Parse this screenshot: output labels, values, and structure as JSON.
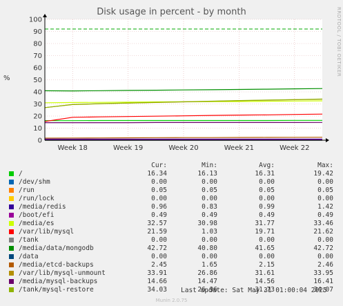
{
  "title": "Disk usage in percent - by month",
  "side_label": "RRDTOOL / TOBI OETIKER",
  "ylabel": "%",
  "header": {
    "cur": "Cur:",
    "min": "Min:",
    "avg": "Avg:",
    "max": "Max:"
  },
  "last_update": "Last update: Sat May 31 01:00:04 2025",
  "footer": "Munin 2.0.75",
  "colors": {
    "background": "#f0f0f0",
    "plot_bg": "#ffffff",
    "grid": "#e0b0b0",
    "warning_line": "#00aa00",
    "axis": "#000000"
  },
  "chart_data": {
    "type": "line",
    "title": "Disk usage in percent - by month",
    "ylabel": "%",
    "ylim": [
      0,
      100
    ],
    "y_ticks": [
      0,
      10,
      20,
      30,
      40,
      50,
      60,
      70,
      80,
      90,
      100
    ],
    "x_ticks": [
      "Week 18",
      "Week 19",
      "Week 20",
      "Week 21",
      "Week 22"
    ],
    "grid": true,
    "warning_level": 92,
    "series": [
      {
        "name": "/",
        "color": "#00cc00",
        "cur": "16.34",
        "min": "16.13",
        "avg": "16.31",
        "max": "19.42",
        "values": [
          16.2,
          16.2,
          16.3,
          16.3,
          16.3,
          16.3,
          16.3,
          16.3,
          16.3,
          16.4,
          16.4
        ]
      },
      {
        "name": "/dev/shm",
        "color": "#0066b3",
        "cur": "0.00",
        "min": "0.00",
        "avg": "0.00",
        "max": "0.00",
        "values": [
          0,
          0,
          0,
          0,
          0,
          0,
          0,
          0,
          0,
          0,
          0
        ]
      },
      {
        "name": "/run",
        "color": "#ff8000",
        "cur": "0.05",
        "min": "0.05",
        "avg": "0.05",
        "max": "0.05",
        "values": [
          0.05,
          0.05,
          0.05,
          0.05,
          0.05,
          0.05,
          0.05,
          0.05,
          0.05,
          0.05,
          0.05
        ]
      },
      {
        "name": "/run/lock",
        "color": "#ffcc00",
        "cur": "0.00",
        "min": "0.00",
        "avg": "0.00",
        "max": "0.00",
        "values": [
          0,
          0,
          0,
          0,
          0,
          0,
          0,
          0,
          0,
          0,
          0
        ]
      },
      {
        "name": "/media/redis",
        "color": "#330099",
        "cur": "0.96",
        "min": "0.83",
        "avg": "0.99",
        "max": "1.42",
        "values": [
          0.9,
          1.0,
          1.0,
          1.0,
          1.0,
          1.0,
          1.0,
          1.0,
          1.0,
          1.0,
          0.96
        ]
      },
      {
        "name": "/boot/efi",
        "color": "#990099",
        "cur": "0.49",
        "min": "0.49",
        "avg": "0.49",
        "max": "0.49",
        "values": [
          0.49,
          0.49,
          0.49,
          0.49,
          0.49,
          0.49,
          0.49,
          0.49,
          0.49,
          0.49,
          0.49
        ]
      },
      {
        "name": "/media/es",
        "color": "#ccff00",
        "cur": "32.57",
        "min": "30.98",
        "avg": "31.77",
        "max": "33.46",
        "values": [
          31.0,
          31.2,
          31.3,
          31.5,
          31.7,
          31.8,
          31.9,
          32.0,
          32.2,
          32.4,
          32.57
        ]
      },
      {
        "name": "/var/lib/mysql",
        "color": "#ff0000",
        "cur": "21.59",
        "min": "1.03",
        "avg": "19.71",
        "max": "21.62",
        "values": [
          15.5,
          19.0,
          19.3,
          19.6,
          19.9,
          20.2,
          20.5,
          20.8,
          21.0,
          21.3,
          21.59
        ]
      },
      {
        "name": "/tank",
        "color": "#808080",
        "cur": "0.00",
        "min": "0.00",
        "avg": "0.00",
        "max": "0.00",
        "values": [
          0,
          0,
          0,
          0,
          0,
          0,
          0,
          0,
          0,
          0,
          0
        ]
      },
      {
        "name": "/media/data/mongodb",
        "color": "#008f00",
        "cur": "42.72",
        "min": "40.80",
        "avg": "41.65",
        "max": "42.72",
        "values": [
          40.9,
          40.8,
          41.0,
          41.2,
          41.4,
          41.6,
          41.8,
          42.0,
          42.2,
          42.5,
          42.72
        ]
      },
      {
        "name": "/data",
        "color": "#00487d",
        "cur": "0.00",
        "min": "0.00",
        "avg": "0.00",
        "max": "0.00",
        "values": [
          0,
          0,
          0,
          0,
          0,
          0,
          0,
          0,
          0,
          0,
          0
        ]
      },
      {
        "name": "/media/etcd-backups",
        "color": "#b35a00",
        "cur": "2.45",
        "min": "1.65",
        "avg": "2.15",
        "max": "2.46",
        "values": [
          1.7,
          1.8,
          1.9,
          2.0,
          2.1,
          2.15,
          2.2,
          2.3,
          2.35,
          2.4,
          2.45
        ]
      },
      {
        "name": "/var/lib/mysql-unmount",
        "color": "#b38f00",
        "cur": "33.91",
        "min": "26.86",
        "avg": "31.61",
        "max": "33.95",
        "values": [
          27.0,
          29.5,
          30.2,
          30.7,
          31.2,
          31.7,
          32.2,
          32.7,
          33.1,
          33.5,
          33.91
        ]
      },
      {
        "name": "/media/mysql-backups",
        "color": "#6b006b",
        "cur": "14.66",
        "min": "14.47",
        "avg": "14.56",
        "max": "16.41",
        "values": [
          14.5,
          14.5,
          14.5,
          14.5,
          14.6,
          14.6,
          14.6,
          14.6,
          14.6,
          14.6,
          14.66
        ]
      },
      {
        "name": "/tank/mysql-restore",
        "color": "#8fb300",
        "cur": "34.03",
        "min": "26.96",
        "avg": "31.73",
        "max": "34.07",
        "values": [
          27.0,
          29.6,
          30.3,
          30.8,
          31.3,
          31.8,
          32.3,
          32.8,
          33.2,
          33.6,
          34.03
        ]
      }
    ]
  }
}
